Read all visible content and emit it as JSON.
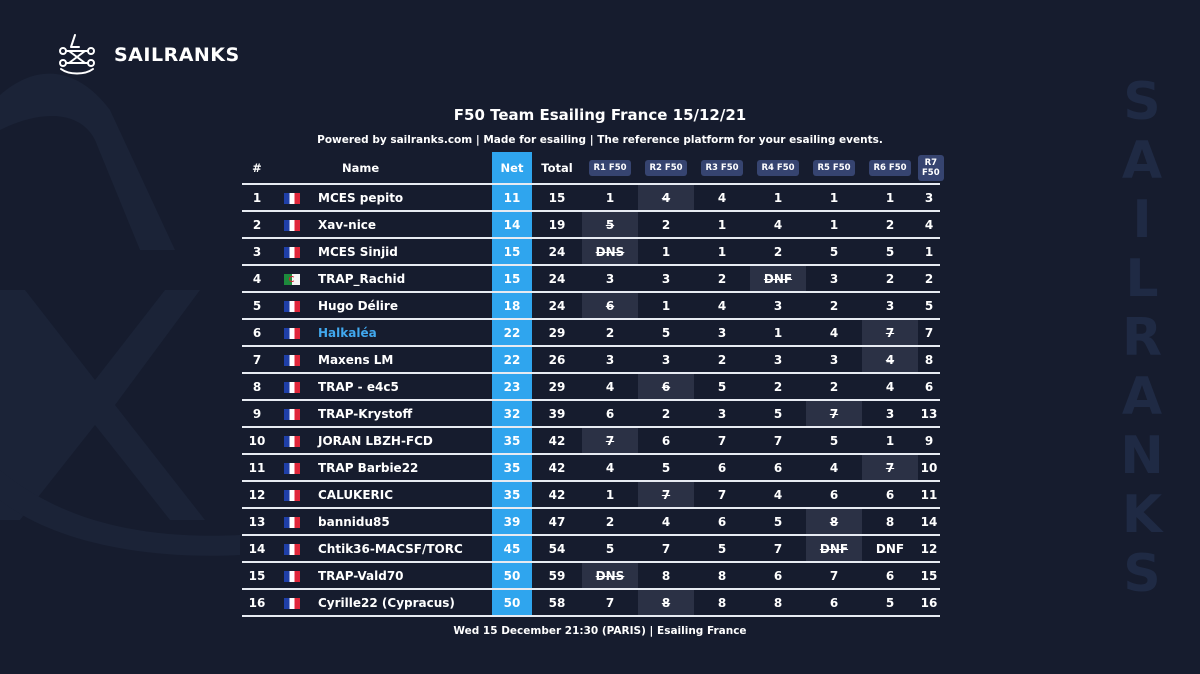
{
  "brand": {
    "name": "SAILRANKS",
    "logo_icon": "sailranks-logo-icon"
  },
  "side_watermark": [
    "S",
    "A",
    "I",
    "L",
    "R",
    "A",
    "N",
    "K",
    "S"
  ],
  "header": {
    "title": "F50 Team Esailing France 15/12/21",
    "subtitle": "Powered by sailranks.com | Made for esailing | The reference platform for your esailing events."
  },
  "table": {
    "headers": {
      "rank": "#",
      "name": "Name",
      "net": "Net",
      "total": "Total"
    },
    "races": [
      "R1 F50",
      "R2 F50",
      "R3 F50",
      "R4 F50",
      "R5 F50",
      "R6 F50",
      "R7 F50"
    ],
    "rows": [
      {
        "rank": "1",
        "flag": "fr",
        "name": "MCES pepito",
        "net": "11",
        "total": "15",
        "r": [
          "1",
          "4",
          "4",
          "1",
          "1",
          "1",
          "3"
        ],
        "d": [
          1
        ]
      },
      {
        "rank": "2",
        "flag": "fr",
        "name": "Xav-nice",
        "net": "14",
        "total": "19",
        "r": [
          "5",
          "2",
          "1",
          "4",
          "1",
          "2",
          "4"
        ],
        "d": [
          0
        ]
      },
      {
        "rank": "3",
        "flag": "fr",
        "name": "MCES Sinjid",
        "net": "15",
        "total": "24",
        "r": [
          "DNS",
          "1",
          "1",
          "2",
          "5",
          "5",
          "1"
        ],
        "d": [
          0
        ]
      },
      {
        "rank": "4",
        "flag": "dz",
        "name": "TRAP_Rachid",
        "net": "15",
        "total": "24",
        "r": [
          "3",
          "3",
          "2",
          "DNF",
          "3",
          "2",
          "2"
        ],
        "d": [
          3
        ]
      },
      {
        "rank": "5",
        "flag": "fr",
        "name": "Hugo Délire",
        "net": "18",
        "total": "24",
        "r": [
          "6",
          "1",
          "4",
          "3",
          "2",
          "3",
          "5"
        ],
        "d": [
          0
        ]
      },
      {
        "rank": "6",
        "flag": "fr",
        "name": "Halkaléa",
        "net": "22",
        "total": "29",
        "r": [
          "2",
          "5",
          "3",
          "1",
          "4",
          "7",
          "7"
        ],
        "d": [
          5
        ],
        "highlight": true
      },
      {
        "rank": "7",
        "flag": "fr",
        "name": "Maxens LM",
        "net": "22",
        "total": "26",
        "r": [
          "3",
          "3",
          "2",
          "3",
          "3",
          "4",
          "8"
        ],
        "d": [
          5
        ]
      },
      {
        "rank": "8",
        "flag": "fr",
        "name": "TRAP - e4c5",
        "net": "23",
        "total": "29",
        "r": [
          "4",
          "6",
          "5",
          "2",
          "2",
          "4",
          "6"
        ],
        "d": [
          1
        ]
      },
      {
        "rank": "9",
        "flag": "fr",
        "name": "TRAP-Krystoff",
        "net": "32",
        "total": "39",
        "r": [
          "6",
          "2",
          "3",
          "5",
          "7",
          "3",
          "13"
        ],
        "d": [
          4
        ]
      },
      {
        "rank": "10",
        "flag": "fr",
        "name": "JORAN LBZH-FCD",
        "net": "35",
        "total": "42",
        "r": [
          "7",
          "6",
          "7",
          "7",
          "5",
          "1",
          "9"
        ],
        "d": [
          0
        ]
      },
      {
        "rank": "11",
        "flag": "fr",
        "name": "TRAP Barbie22",
        "net": "35",
        "total": "42",
        "r": [
          "4",
          "5",
          "6",
          "6",
          "4",
          "7",
          "10"
        ],
        "d": [
          5
        ]
      },
      {
        "rank": "12",
        "flag": "fr",
        "name": "CALUKERIC",
        "net": "35",
        "total": "42",
        "r": [
          "1",
          "7",
          "7",
          "4",
          "6",
          "6",
          "11"
        ],
        "d": [
          1
        ]
      },
      {
        "rank": "13",
        "flag": "fr",
        "name": "bannidu85",
        "net": "39",
        "total": "47",
        "r": [
          "2",
          "4",
          "6",
          "5",
          "8",
          "8",
          "14"
        ],
        "d": [
          4
        ]
      },
      {
        "rank": "14",
        "flag": "fr",
        "name": "Chtik36-MACSF/TORC",
        "net": "45",
        "total": "54",
        "r": [
          "5",
          "7",
          "5",
          "7",
          "DNF",
          "DNF",
          "12"
        ],
        "d": [
          4
        ]
      },
      {
        "rank": "15",
        "flag": "fr",
        "name": "TRAP-Vald70",
        "net": "50",
        "total": "59",
        "r": [
          "DNS",
          "8",
          "8",
          "6",
          "7",
          "6",
          "15"
        ],
        "d": [
          0
        ]
      },
      {
        "rank": "16",
        "flag": "fr",
        "name": "Cyrille22 (Cypracus)",
        "net": "50",
        "total": "58",
        "r": [
          "7",
          "8",
          "8",
          "8",
          "6",
          "5",
          "16"
        ],
        "d": [
          1
        ]
      }
    ]
  },
  "footer": {
    "text": "Wed 15 December 21:30 (PARIS) | Esailing France"
  },
  "colors": {
    "background": "#161c2e",
    "net_column": "#2fa5ee",
    "highlight_name": "#41a8ee",
    "race_badge": "#364470",
    "discard_cell": "#2b3145"
  }
}
